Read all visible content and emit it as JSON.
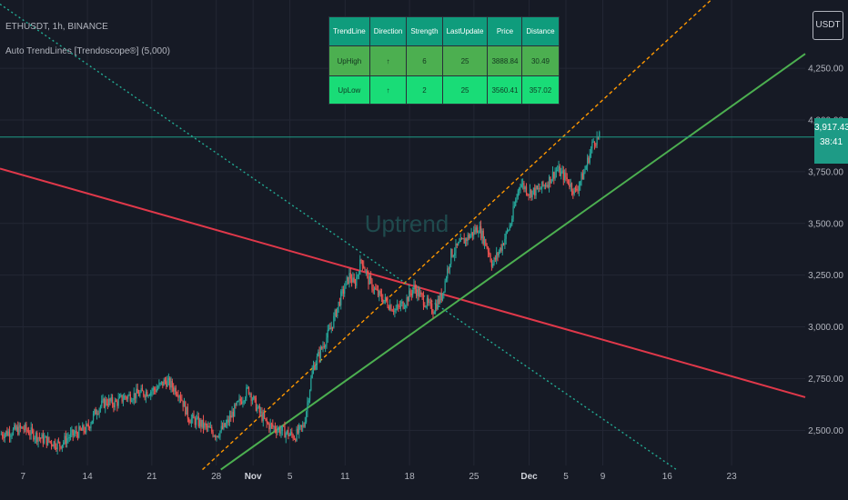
{
  "header": {
    "symbol_line": "ETHUSDT, 1h, BINANCE",
    "indicator_line": "Auto TrendLines [Trendoscope®] (5,000)"
  },
  "currency_button": "USDT",
  "price_label": {
    "price": "3,917.43",
    "countdown": "38:41"
  },
  "watermark": "Uptrend",
  "table": {
    "headers": [
      "TrendLine",
      "Direction",
      "Strength",
      "LastUpdate",
      "Price",
      "Distance"
    ],
    "rows": [
      [
        "UpHigh",
        "↑",
        "6",
        "25",
        "3888.84",
        "30.49"
      ],
      [
        "UpLow",
        "↑",
        "2",
        "25",
        "3560.41",
        "357.02"
      ]
    ]
  },
  "chart_data": {
    "type": "line",
    "title": "ETHUSDT, 1h, BINANCE",
    "x_ticks": [
      "7",
      "14",
      "21",
      "28",
      "Nov",
      "5",
      "11",
      "18",
      "25",
      "Dec",
      "5",
      "9",
      "16",
      "23"
    ],
    "x_tick_days": [
      0,
      7,
      14,
      21,
      25,
      29,
      35,
      42,
      49,
      55,
      59,
      63,
      70,
      77
    ],
    "x_range_days": [
      -2.5,
      85
    ],
    "y_ticks": [
      2500,
      2750,
      3000,
      3250,
      3500,
      3750,
      4000,
      4250
    ],
    "y_tick_labels": [
      "2,500.00",
      "2,750.00",
      "3,000.00",
      "3,250.00",
      "3,500.00",
      "3,750.00",
      "4,000.00",
      "4,250.00"
    ],
    "ylim": [
      2330,
      4580
    ],
    "grid": true,
    "colors": {
      "up": "#26a69a",
      "down": "#ef5350",
      "red_line": "#e0384a",
      "green_line": "#4caf50",
      "orange_dash": "#ff9800",
      "teal_dash": "#22ab94",
      "grid": "#232734",
      "axis_text": "#b2b5be",
      "current_price_line": "#1e9b86"
    },
    "price_path": [
      {
        "day": -2.5,
        "price": 2480
      },
      {
        "day": 0,
        "price": 2510
      },
      {
        "day": 2,
        "price": 2460
      },
      {
        "day": 4,
        "price": 2430
      },
      {
        "day": 5,
        "price": 2470
      },
      {
        "day": 6,
        "price": 2490
      },
      {
        "day": 7,
        "price": 2510
      },
      {
        "day": 8,
        "price": 2600
      },
      {
        "day": 9,
        "price": 2640
      },
      {
        "day": 10,
        "price": 2630
      },
      {
        "day": 11,
        "price": 2660
      },
      {
        "day": 13,
        "price": 2680
      },
      {
        "day": 14.5,
        "price": 2700
      },
      {
        "day": 15.5,
        "price": 2740
      },
      {
        "day": 17,
        "price": 2680
      },
      {
        "day": 18,
        "price": 2560
      },
      {
        "day": 19,
        "price": 2540
      },
      {
        "day": 20,
        "price": 2510
      },
      {
        "day": 21,
        "price": 2480
      },
      {
        "day": 22,
        "price": 2520
      },
      {
        "day": 23,
        "price": 2600
      },
      {
        "day": 24.5,
        "price": 2700
      },
      {
        "day": 25.5,
        "price": 2600
      },
      {
        "day": 26.5,
        "price": 2530
      },
      {
        "day": 27.5,
        "price": 2510
      },
      {
        "day": 28.5,
        "price": 2490
      },
      {
        "day": 29.5,
        "price": 2470
      },
      {
        "day": 30.5,
        "price": 2520
      },
      {
        "day": 31.5,
        "price": 2800
      },
      {
        "day": 32.5,
        "price": 2900
      },
      {
        "day": 33.5,
        "price": 3000
      },
      {
        "day": 34.5,
        "price": 3140
      },
      {
        "day": 35.5,
        "price": 3250
      },
      {
        "day": 36,
        "price": 3200
      },
      {
        "day": 36.8,
        "price": 3330
      },
      {
        "day": 37.5,
        "price": 3230
      },
      {
        "day": 38.5,
        "price": 3160
      },
      {
        "day": 39.5,
        "price": 3120
      },
      {
        "day": 40.5,
        "price": 3080
      },
      {
        "day": 41.5,
        "price": 3120
      },
      {
        "day": 42.5,
        "price": 3190
      },
      {
        "day": 43.5,
        "price": 3130
      },
      {
        "day": 44.5,
        "price": 3080
      },
      {
        "day": 45.5,
        "price": 3150
      },
      {
        "day": 46.5,
        "price": 3350
      },
      {
        "day": 47.5,
        "price": 3400
      },
      {
        "day": 48.5,
        "price": 3440
      },
      {
        "day": 49.5,
        "price": 3480
      },
      {
        "day": 50.5,
        "price": 3380
      },
      {
        "day": 51,
        "price": 3300
      },
      {
        "day": 52,
        "price": 3390
      },
      {
        "day": 53,
        "price": 3500
      },
      {
        "day": 54,
        "price": 3700
      },
      {
        "day": 55,
        "price": 3650
      },
      {
        "day": 56,
        "price": 3660
      },
      {
        "day": 57,
        "price": 3700
      },
      {
        "day": 58,
        "price": 3760
      },
      {
        "day": 59,
        "price": 3720
      },
      {
        "day": 60,
        "price": 3650
      },
      {
        "day": 61,
        "price": 3750
      },
      {
        "day": 62,
        "price": 3900
      },
      {
        "day": 62.7,
        "price": 3917
      }
    ],
    "trend_lines": [
      {
        "id": "red",
        "style": "solid",
        "from": {
          "day": -2.5,
          "price": 3765
        },
        "to": {
          "day": 85,
          "price": 2660
        }
      },
      {
        "id": "green",
        "style": "solid",
        "from": {
          "day": 21.5,
          "price": 2310
        },
        "to": {
          "day": 85,
          "price": 4320
        }
      },
      {
        "id": "orange",
        "style": "dashed",
        "from": {
          "day": 19.5,
          "price": 2310
        },
        "to": {
          "day": 75,
          "price": 4590
        }
      },
      {
        "id": "teal",
        "style": "dotted",
        "from": {
          "day": -2.5,
          "price": 4560
        },
        "to": {
          "day": 71,
          "price": 2310
        }
      }
    ],
    "current_price": 3917.43
  }
}
